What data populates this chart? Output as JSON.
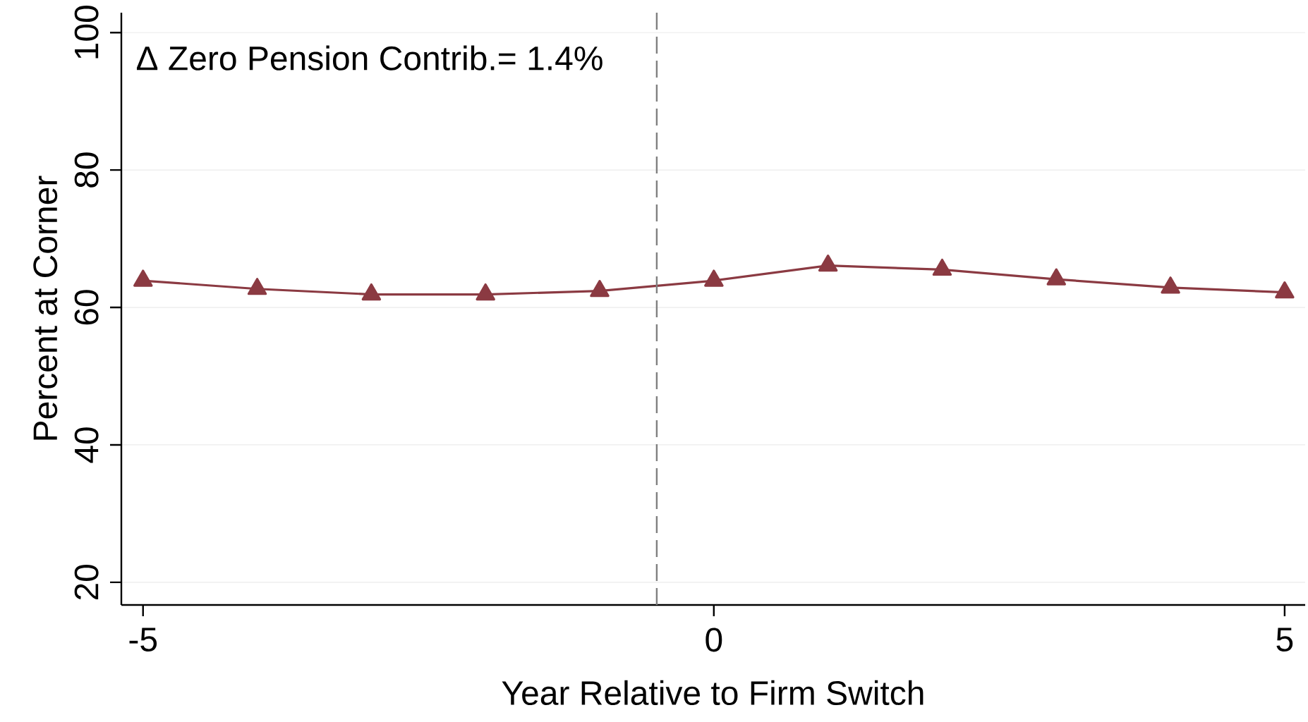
{
  "chart_data": {
    "type": "line",
    "xlabel": "Year Relative to Firm Switch",
    "ylabel": "Percent at Corner",
    "x": [
      -5,
      -4,
      -3,
      -2,
      -1,
      0,
      1,
      2,
      3,
      4,
      5
    ],
    "series": [
      {
        "color": "#8b3a42",
        "values": [
          63.9,
          62.7,
          61.9,
          61.9,
          62.4,
          63.9,
          66.1,
          65.5,
          64.1,
          62.9,
          62.2
        ]
      }
    ],
    "marker": "triangle",
    "line_style": "solid",
    "xlim": [
      -5.19,
      5.18
    ],
    "ylim": [
      16.7,
      102.9
    ],
    "xticks": [
      -5,
      0,
      5
    ],
    "yticks": [
      20,
      40,
      60,
      80,
      100
    ],
    "grid": "y",
    "ref_lines": [
      {
        "axis": "x",
        "value": -0.5,
        "color": "#808080",
        "line_style": "dashed"
      }
    ],
    "annotations": [
      "Δ Zero Pension Contrib.=   1.4%"
    ]
  }
}
